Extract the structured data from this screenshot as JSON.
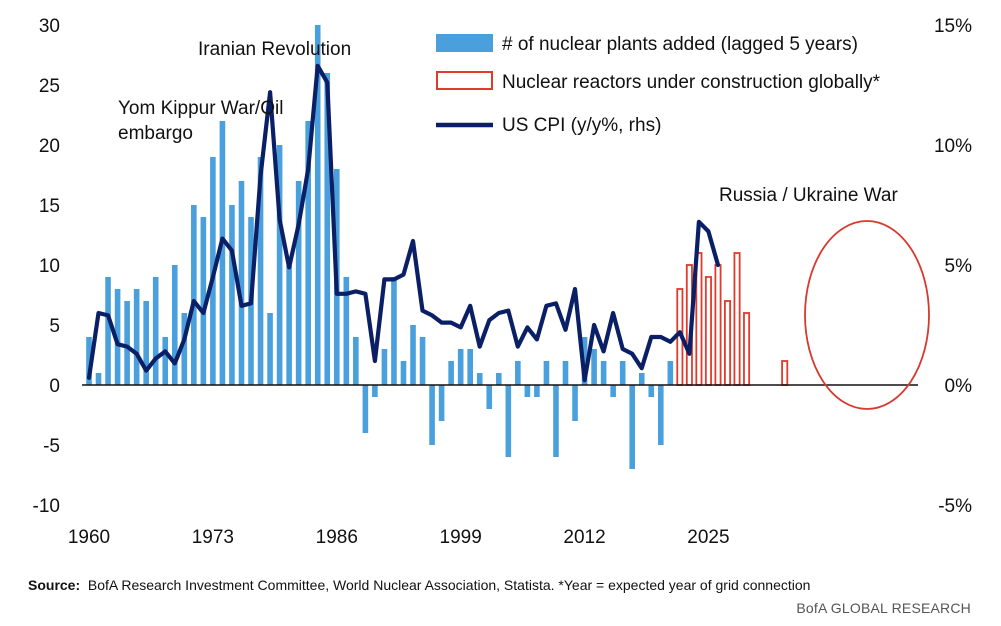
{
  "chart_data": {
    "type": "bar+line",
    "title": "",
    "colors": {
      "bar": "#4aa0dc",
      "construction": "#e03a2a",
      "cpi": "#0b1f66",
      "highlight_ellipse": "#d63a2f"
    },
    "x_ticks": [
      "1960",
      "1973",
      "1986",
      "1999",
      "2012",
      "2025"
    ],
    "y_left_ticks": [
      "30",
      "25",
      "20",
      "15",
      "10",
      "5",
      "0",
      "-5",
      "-10"
    ],
    "y_left_range": [
      -10,
      30
    ],
    "y_right_ticks": [
      "15%",
      "10%",
      "5%",
      "0%",
      "-5%"
    ],
    "y_right_range": [
      -5,
      15
    ],
    "legend": {
      "placement": "top-right",
      "items": [
        {
          "name": "# of nuclear plants added (lagged 5 years)",
          "style": "bar"
        },
        {
          "name": "Nuclear reactors under construction globally*",
          "style": "outline-bar"
        },
        {
          "name": "US CPI (y/y%, rhs)",
          "style": "line"
        }
      ]
    },
    "annotations": [
      "Yom Kippur War/Oil",
      "embargo",
      "Iranian Revolution",
      "Russia / Ukraine War"
    ],
    "series": [
      {
        "name": "# of nuclear plants added (lagged 5 years)",
        "axis": "left",
        "years": [
          1960,
          1961,
          1962,
          1963,
          1964,
          1965,
          1966,
          1967,
          1968,
          1969,
          1970,
          1971,
          1972,
          1973,
          1974,
          1975,
          1976,
          1977,
          1978,
          1979,
          1980,
          1981,
          1982,
          1983,
          1984,
          1985,
          1986,
          1987,
          1988,
          1989,
          1990,
          1991,
          1992,
          1993,
          1994,
          1995,
          1996,
          1997,
          1998,
          1999,
          2000,
          2001,
          2002,
          2003,
          2004,
          2005,
          2006,
          2007,
          2008,
          2009,
          2010,
          2011,
          2012,
          2013,
          2014,
          2015,
          2016,
          2017,
          2018,
          2019,
          2020,
          2021
        ],
        "values": [
          4,
          1,
          9,
          8,
          7,
          8,
          7,
          9,
          4,
          10,
          6,
          15,
          14,
          19,
          22,
          15,
          17,
          14,
          19,
          6,
          20,
          10,
          17,
          22,
          30,
          26,
          18,
          9,
          4,
          -4,
          -1,
          3,
          9,
          2,
          5,
          4,
          -5,
          -3,
          2,
          3,
          3,
          1,
          -2,
          1,
          -6,
          2,
          -1,
          -1,
          2,
          -6,
          2,
          -3,
          4,
          3,
          2,
          -1,
          2,
          -7,
          1,
          -1,
          -5,
          2
        ]
      },
      {
        "name": "Nuclear reactors under construction globally*",
        "axis": "left",
        "years": [
          2022,
          2023,
          2024,
          2025,
          2026,
          2027,
          2028,
          2029,
          2030,
          2031,
          2032,
          2033
        ],
        "values": [
          8,
          10,
          11,
          9,
          10,
          7,
          11,
          6,
          0,
          0,
          0,
          2
        ]
      },
      {
        "name": "US CPI (y/y%, rhs)",
        "axis": "right",
        "years": [
          1960,
          1961,
          1962,
          1963,
          1964,
          1965,
          1966,
          1967,
          1968,
          1969,
          1970,
          1971,
          1972,
          1973,
          1974,
          1975,
          1976,
          1977,
          1978,
          1979,
          1980,
          1981,
          1982,
          1983,
          1984,
          1985,
          1986,
          1987,
          1988,
          1989,
          1990,
          1991,
          1992,
          1993,
          1994,
          1995,
          1996,
          1997,
          1998,
          1999,
          2000,
          2001,
          2002,
          2003,
          2004,
          2005,
          2006,
          2007,
          2008,
          2009,
          2010,
          2011,
          2012,
          2013,
          2014,
          2015,
          2016,
          2017,
          2018,
          2019,
          2020,
          2021,
          2022,
          2023,
          2024,
          2025,
          2026,
          2027
        ],
        "values": [
          0.3,
          3.0,
          2.9,
          1.7,
          1.6,
          1.3,
          0.6,
          1.1,
          1.4,
          0.9,
          1.9,
          3.5,
          3.0,
          4.5,
          6.1,
          5.6,
          3.3,
          3.4,
          8.7,
          12.2,
          6.9,
          4.9,
          6.7,
          9.0,
          13.3,
          12.6,
          3.8,
          3.8,
          3.9,
          3.8,
          1.0,
          4.4,
          4.4,
          4.6,
          6.0,
          3.1,
          2.9,
          2.6,
          2.6,
          2.4,
          3.3,
          1.6,
          2.7,
          3.0,
          3.1,
          1.6,
          2.4,
          1.9,
          3.3,
          3.4,
          2.3,
          4.0,
          0.2,
          2.5,
          1.4,
          3.0,
          1.5,
          1.3,
          0.7,
          2.0,
          2.0,
          1.8,
          2.2,
          1.3,
          6.8,
          6.4,
          5.0,
          null
        ]
      }
    ]
  },
  "footer": {
    "source_label": "Source:",
    "source_text": "BofA Research Investment Committee, World Nuclear Association, Statista. *Year = expected year of grid connection",
    "brand": "BofA GLOBAL RESEARCH"
  }
}
